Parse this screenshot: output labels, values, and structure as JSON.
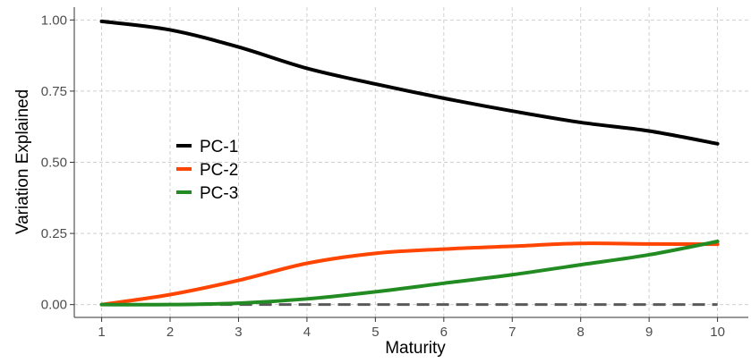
{
  "chart_data": {
    "type": "line",
    "title": "",
    "xlabel": "Maturity",
    "ylabel": "Variation Explained",
    "x": [
      1,
      2,
      3,
      4,
      5,
      6,
      7,
      8,
      9,
      10
    ],
    "xlim": [
      0.6,
      10.45
    ],
    "ylim": [
      -0.045,
      1.045
    ],
    "xticks": [
      1,
      2,
      3,
      4,
      5,
      6,
      7,
      8,
      9,
      10
    ],
    "yticks": [
      0.0,
      0.25,
      0.5,
      0.75,
      1.0
    ],
    "xtick_labels": [
      "1",
      "2",
      "3",
      "4",
      "5",
      "6",
      "7",
      "8",
      "9",
      "10"
    ],
    "ytick_labels": [
      "0.00",
      "0.25",
      "0.50",
      "0.75",
      "1.00"
    ],
    "grid": true,
    "legend_position": "center-left",
    "series": [
      {
        "name": "PC-1",
        "color": "#000000",
        "values": [
          0.995,
          0.965,
          0.905,
          0.83,
          0.775,
          0.725,
          0.68,
          0.64,
          0.61,
          0.565
        ]
      },
      {
        "name": "PC-2",
        "color": "#ff4500",
        "values": [
          0.0,
          0.035,
          0.085,
          0.145,
          0.18,
          0.195,
          0.205,
          0.215,
          0.213,
          0.212
        ]
      },
      {
        "name": "PC-3",
        "color": "#228b22",
        "values": [
          0.0,
          0.0,
          0.005,
          0.02,
          0.045,
          0.075,
          0.105,
          0.14,
          0.175,
          0.222
        ]
      }
    ],
    "reference_line": {
      "y": 0,
      "color": "#595959",
      "style": "dashed"
    }
  }
}
